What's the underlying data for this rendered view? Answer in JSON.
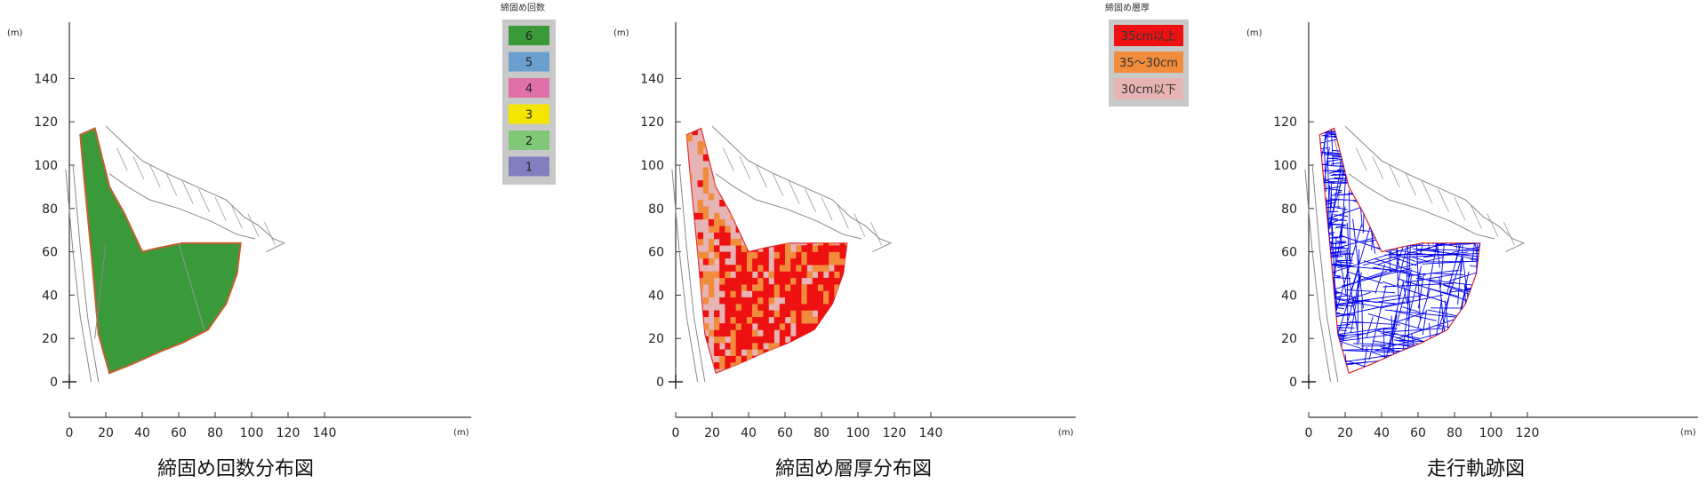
{
  "charts": [
    {
      "title": "締固め回数分布図",
      "unit": "(m)",
      "x_ticks": [
        "0",
        "20",
        "40",
        "60",
        "80",
        "100",
        "120",
        "140"
      ],
      "y_ticks": [
        "0",
        "20",
        "40",
        "60",
        "80",
        "100",
        "120",
        "140"
      ],
      "legend": {
        "title": "締固め回数",
        "items": [
          {
            "label": "6",
            "color": "#3a9a3a"
          },
          {
            "label": "5",
            "color": "#6b9fcf"
          },
          {
            "label": "4",
            "color": "#e070a8"
          },
          {
            "label": "3",
            "color": "#f5e600"
          },
          {
            "label": "2",
            "color": "#80c878"
          },
          {
            "label": "1",
            "color": "#8080c0"
          }
        ]
      }
    },
    {
      "title": "締固め層厚分布図",
      "unit": "(m)",
      "x_ticks": [
        "0",
        "20",
        "40",
        "60",
        "80",
        "100",
        "120",
        "140"
      ],
      "y_ticks": [
        "0",
        "20",
        "40",
        "60",
        "80",
        "100",
        "120",
        "140"
      ],
      "legend": {
        "title": "締固め層厚",
        "items": [
          {
            "label": "35cm以上",
            "color": "#ee1111"
          },
          {
            "label": "35～30cm",
            "color": "#f08c3c"
          },
          {
            "label": "30cm以下",
            "color": "#e6b4b4"
          }
        ]
      }
    },
    {
      "title": "走行軌跡図",
      "unit": "(m)",
      "x_ticks": [
        "0",
        "20",
        "40",
        "60",
        "80",
        "100",
        "120"
      ],
      "y_ticks": [
        "0",
        "20",
        "40",
        "60",
        "80",
        "100",
        "120"
      ]
    }
  ],
  "chart_data": [
    {
      "type": "heatmap",
      "title": "締固め回数分布図",
      "xlim": [
        0,
        140
      ],
      "ylim": [
        0,
        140
      ],
      "legend_position": "top-right",
      "categories": [
        "6",
        "5",
        "4",
        "3",
        "2",
        "1"
      ],
      "dominant_category": "6"
    },
    {
      "type": "heatmap",
      "title": "締固め層厚分布図",
      "xlim": [
        0,
        140
      ],
      "ylim": [
        0,
        140
      ],
      "legend_position": "top-right",
      "categories": [
        "35cm以上",
        "35～30cm",
        "30cm以下"
      ]
    },
    {
      "type": "line",
      "title": "走行軌跡図",
      "xlim": [
        0,
        120
      ],
      "ylim": [
        0,
        120
      ],
      "series_color": "#0000ee"
    }
  ]
}
